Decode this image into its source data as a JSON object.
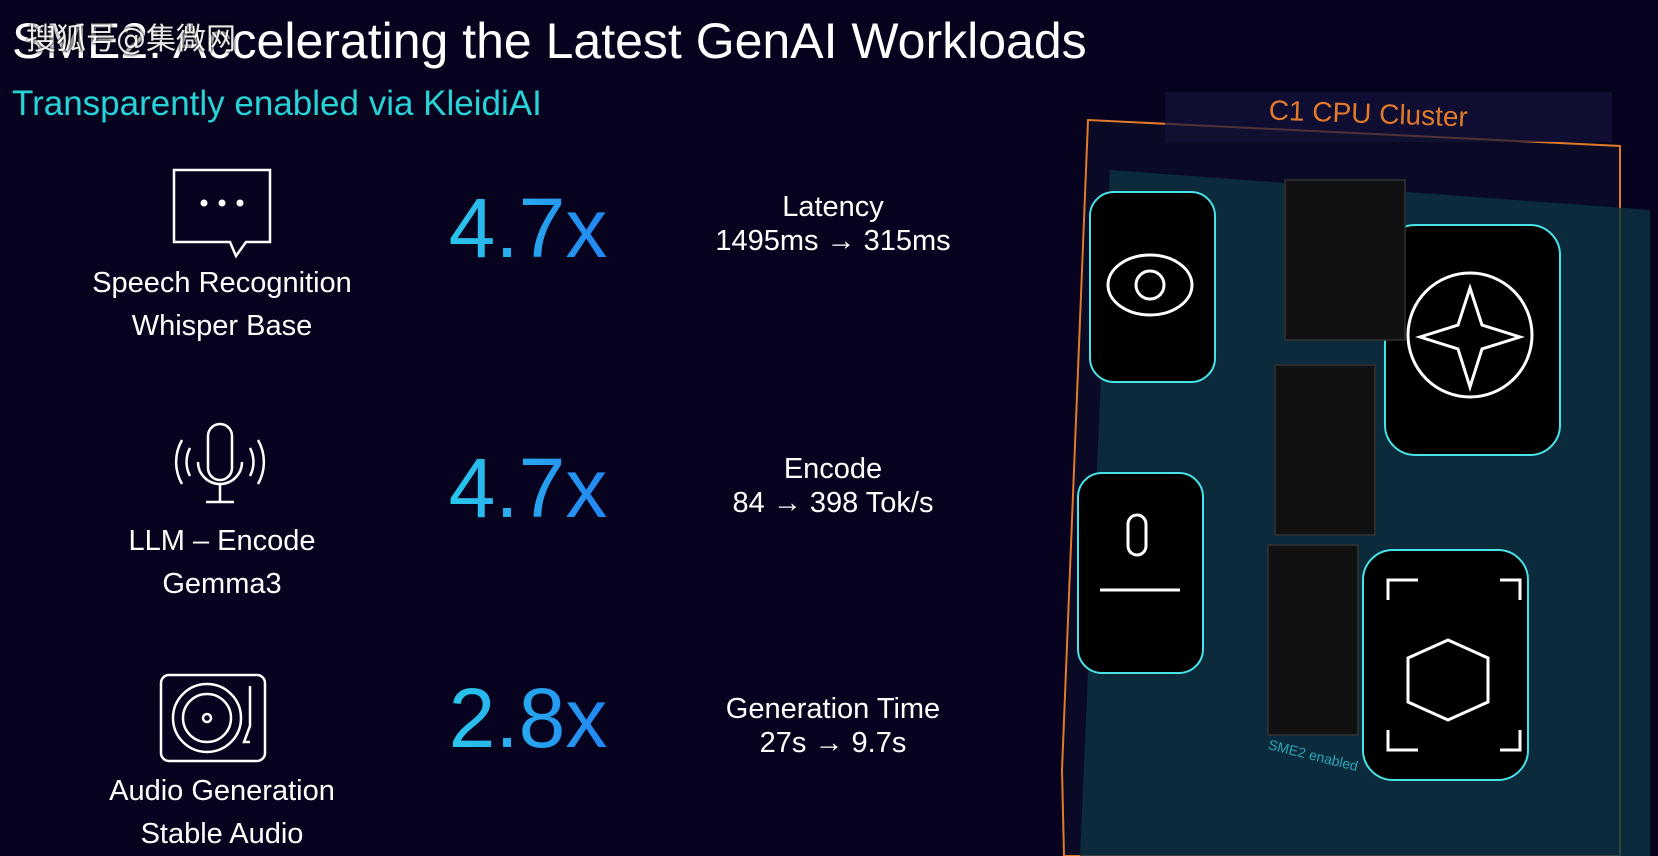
{
  "header": {
    "title": "SME2: Accelerating the Latest GenAI Workloads",
    "subtitle": "Transparently enabled via KleidiAI",
    "watermark": "搜狐号@集微网"
  },
  "rows": [
    {
      "label": [
        "Speech Recognition",
        "Whisper Base"
      ],
      "speedup": "4.7x",
      "metric": "Latency",
      "detail": "1495ms → 315ms"
    },
    {
      "label": [
        "LLM – Encode",
        "Gemma3"
      ],
      "speedup": "4.7x",
      "metric": "Encode",
      "detail": "84 → 398 Tok/s"
    },
    {
      "label": [
        "Audio Generation",
        "Stable Audio"
      ],
      "speedup": "2.8x",
      "metric": "Generation Time",
      "detail": "27s → 9.7s"
    }
  ],
  "graphic": {
    "cluster": "C1 CPU Cluster",
    "badge": "SME2 enabled"
  }
}
